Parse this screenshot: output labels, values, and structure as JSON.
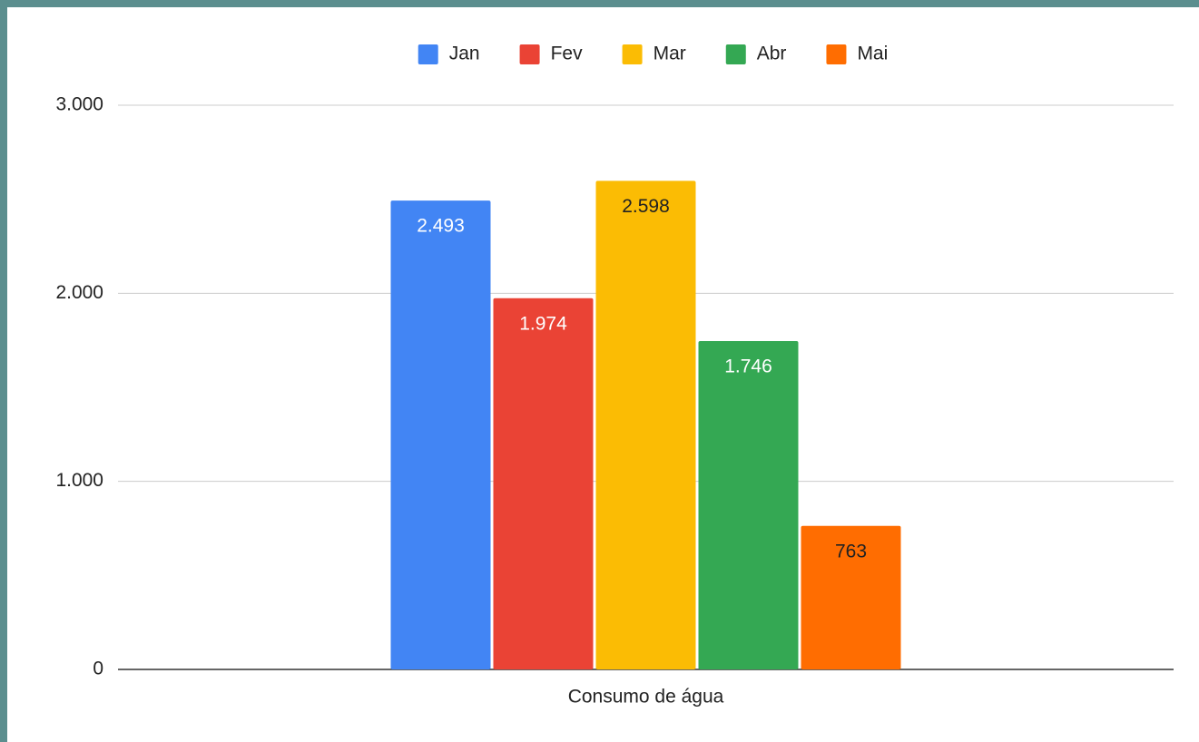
{
  "chart_data": {
    "type": "bar",
    "categories": [
      "Consumo de água"
    ],
    "series": [
      {
        "name": "Jan",
        "color": "#4285f4",
        "values": [
          2493
        ],
        "value_labels": [
          "2.493"
        ]
      },
      {
        "name": "Fev",
        "color": "#ea4335",
        "values": [
          1974
        ],
        "value_labels": [
          "1.974"
        ]
      },
      {
        "name": "Mar",
        "color": "#fbbc04",
        "values": [
          2598
        ],
        "value_labels": [
          "2.598"
        ]
      },
      {
        "name": "Abr",
        "color": "#34a853",
        "values": [
          1746
        ],
        "value_labels": [
          "1.746"
        ]
      },
      {
        "name": "Mai",
        "color": "#ff6d01",
        "values": [
          763
        ],
        "value_labels": [
          "763"
        ]
      }
    ],
    "ylim": [
      0,
      3000
    ],
    "yticks": [
      0,
      {
        "value": 1000,
        "label": "1.000"
      },
      {
        "value": 2000,
        "label": "2.000"
      },
      {
        "value": 3000,
        "label": "3.000"
      }
    ],
    "grid": true,
    "legend": "top"
  }
}
